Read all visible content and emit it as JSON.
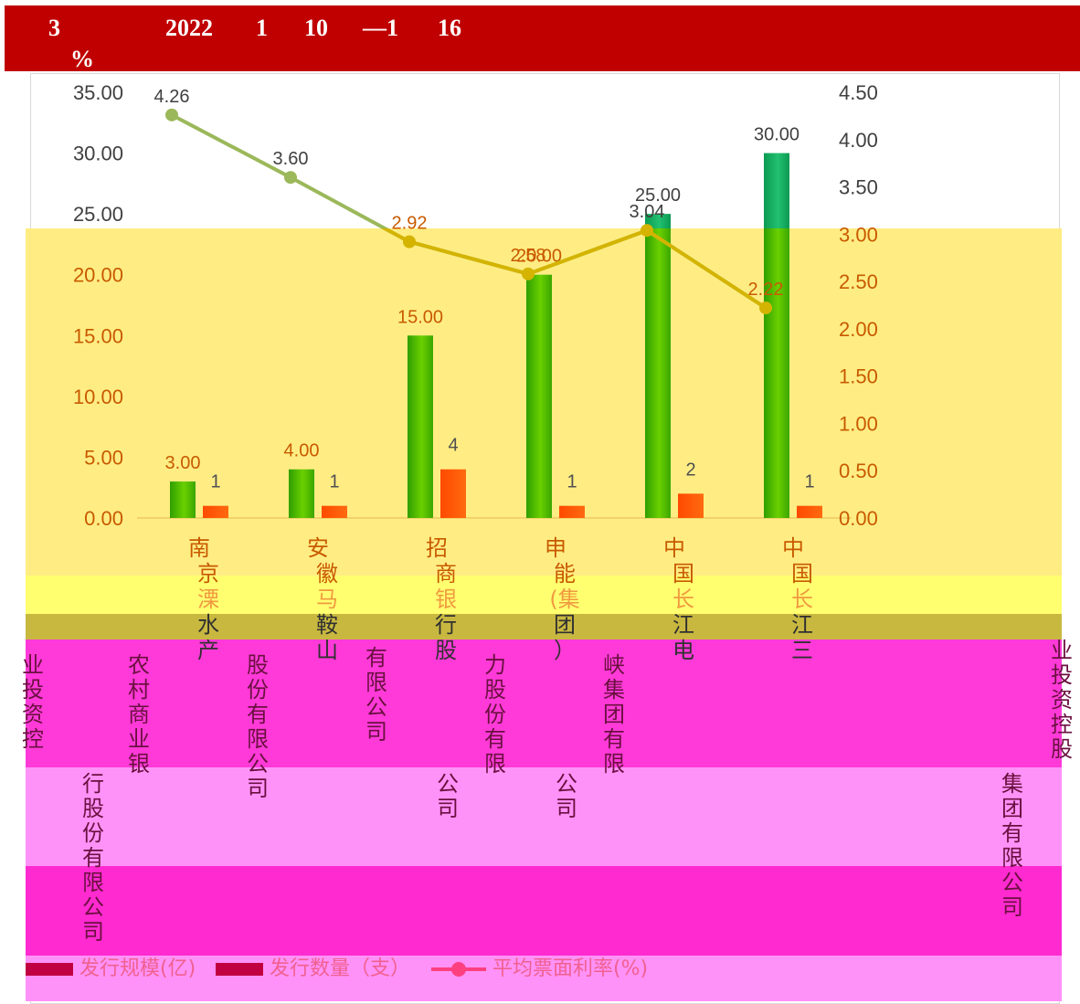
{
  "title_bar": {
    "t1": "3",
    "t2": "%",
    "t3": "2022",
    "t4": "1",
    "t5": "10",
    "t6": "—1",
    "t7": "16"
  },
  "colors": {
    "title_bg": "#c00000",
    "bar_scale": "#5cb800",
    "bar_count": "#ff5a00",
    "line_rate": "#d4b400",
    "band_yellow": "#ffef7a",
    "band_magenta": "#ff2ad0",
    "band_pink": "#ff8cf6"
  },
  "legend": [
    {
      "label": "发行规模(亿)",
      "icon": "bar-swatch"
    },
    {
      "label": "发行数量（支）",
      "icon": "bar-swatch"
    },
    {
      "label": "平均票面利率(%)",
      "icon": "line-marker"
    }
  ],
  "chart_data": {
    "type": "bar",
    "categories": [
      "南京溧水产业投资控股集团有限公司",
      "安徽马鞍山农村商业银行股份有限公司",
      "招商银行股份有限公司",
      "申能(集团)有限公司",
      "中国长江电力股份有限公司",
      "中国长江三峡集团有限公司"
    ],
    "category_visible_chars": [
      [
        "南",
        "京",
        "溧",
        "水",
        "产"
      ],
      [
        "安",
        "徽",
        "马",
        "鞍",
        "山"
      ],
      [
        "招",
        "商",
        "银",
        "行",
        "股"
      ],
      [
        "申",
        "能",
        "(集",
        "团",
        "）"
      ],
      [
        "中",
        "国",
        "长",
        "江",
        "电"
      ],
      [
        "中",
        "国",
        "长",
        "江",
        "三"
      ]
    ],
    "overflow_text": [
      {
        "chars": [
          "业",
          "投",
          "资",
          "控"
        ]
      },
      {
        "chars": [
          "农",
          "村",
          "商",
          "业",
          "银"
        ]
      },
      {
        "chars": [
          "行",
          "股",
          "份",
          "有",
          "限",
          "公",
          "司"
        ]
      },
      {
        "chars": [
          "股",
          "份",
          "有",
          "限",
          "公",
          "司"
        ]
      },
      {
        "chars": [
          "有",
          "限",
          "公",
          "司"
        ]
      },
      {
        "chars": [
          "力",
          "股",
          "份",
          "有",
          "限"
        ]
      },
      {
        "chars": [
          "公",
          "司"
        ]
      },
      {
        "chars": [
          "峡",
          "集",
          "团",
          "有",
          "限"
        ]
      },
      {
        "chars": [
          "公",
          "司"
        ]
      },
      {
        "chars": [
          "业",
          "投",
          "资",
          "控",
          "股"
        ]
      },
      {
        "chars": [
          "集",
          "团",
          "有",
          "限",
          "公",
          "司"
        ]
      }
    ],
    "series": [
      {
        "name": "发行规模(亿)",
        "axis": "left",
        "type": "bar",
        "values": [
          3.0,
          4.0,
          15.0,
          20.0,
          25.0,
          30.0
        ],
        "labels": [
          "3.00",
          "4.00",
          "15.00",
          "20.00",
          "25.00",
          "30.00"
        ]
      },
      {
        "name": "发行数量（支）",
        "axis": "left",
        "type": "bar",
        "values": [
          1,
          1,
          4,
          1,
          2,
          1
        ],
        "labels": [
          "1",
          "1",
          "4",
          "1",
          "2",
          "1"
        ]
      },
      {
        "name": "平均票面利率(%)",
        "axis": "right",
        "type": "line",
        "values": [
          4.26,
          3.6,
          2.92,
          2.58,
          3.04,
          2.22
        ],
        "labels": [
          "4.26",
          "3.60",
          "2.92",
          "2.58",
          "3.04",
          "2.22"
        ]
      }
    ],
    "left_axis": {
      "min": 0,
      "max": 35,
      "ticks": [
        "0.00",
        "5.00",
        "10.00",
        "15.00",
        "20.00",
        "25.00",
        "30.00",
        "35.00"
      ]
    },
    "right_axis": {
      "min": 0,
      "max": 4.5,
      "ticks": [
        "0.00",
        "0.50",
        "1.00",
        "1.50",
        "2.00",
        "2.50",
        "3.00",
        "3.50",
        "4.00",
        "4.50"
      ]
    },
    "grid": false,
    "legend_position": "bottom-left"
  }
}
